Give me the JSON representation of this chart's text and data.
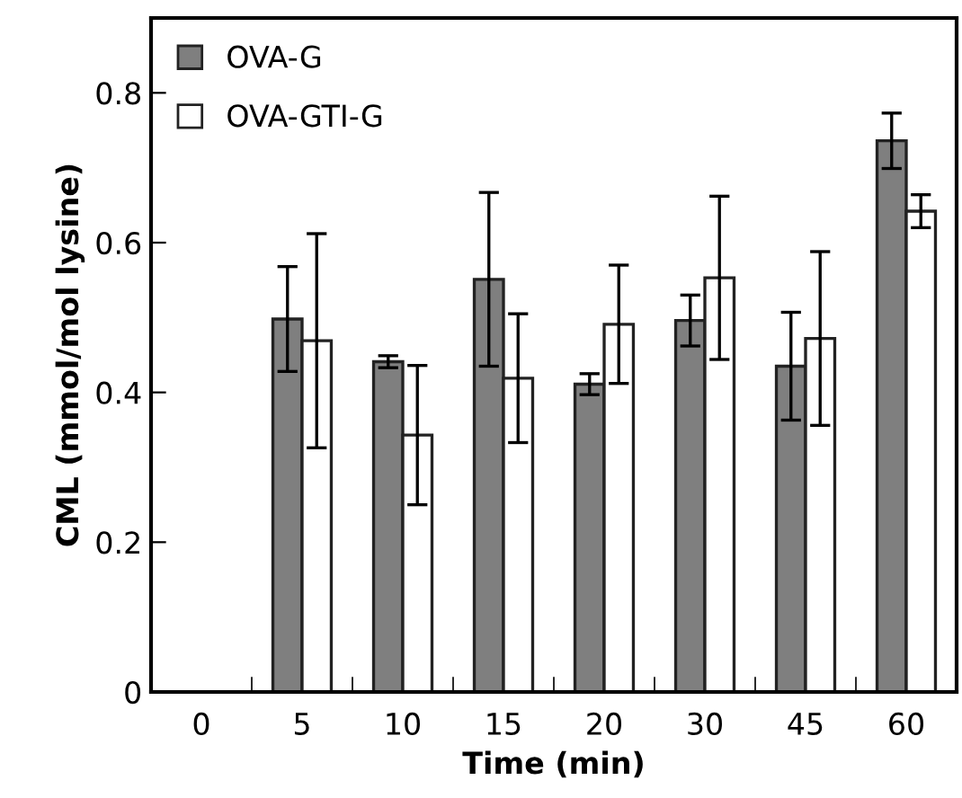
{
  "chart_data": {
    "type": "bar",
    "xlabel": "Time (min)",
    "ylabel": "CML (mmol/mol lysine)",
    "categories": [
      "0",
      "5",
      "10",
      "15",
      "20",
      "30",
      "45",
      "60"
    ],
    "series": [
      {
        "name": "OVA-G",
        "color": "#7f7f7f",
        "values": [
          null,
          0.498,
          0.441,
          0.551,
          0.411,
          0.496,
          0.435,
          0.736
        ],
        "errors": [
          null,
          0.07,
          0.008,
          0.116,
          0.014,
          0.034,
          0.072,
          0.037
        ]
      },
      {
        "name": "OVA-GTI-G",
        "color": "#ffffff",
        "values": [
          null,
          0.469,
          0.343,
          0.419,
          0.491,
          0.553,
          0.472,
          0.642
        ],
        "errors": [
          null,
          0.143,
          0.093,
          0.086,
          0.079,
          0.109,
          0.116,
          0.022
        ]
      }
    ],
    "ylim": [
      0,
      0.9
    ],
    "yticks": [
      0,
      0.2,
      0.4,
      0.6,
      0.8
    ],
    "grid": false,
    "legend": "top left"
  }
}
